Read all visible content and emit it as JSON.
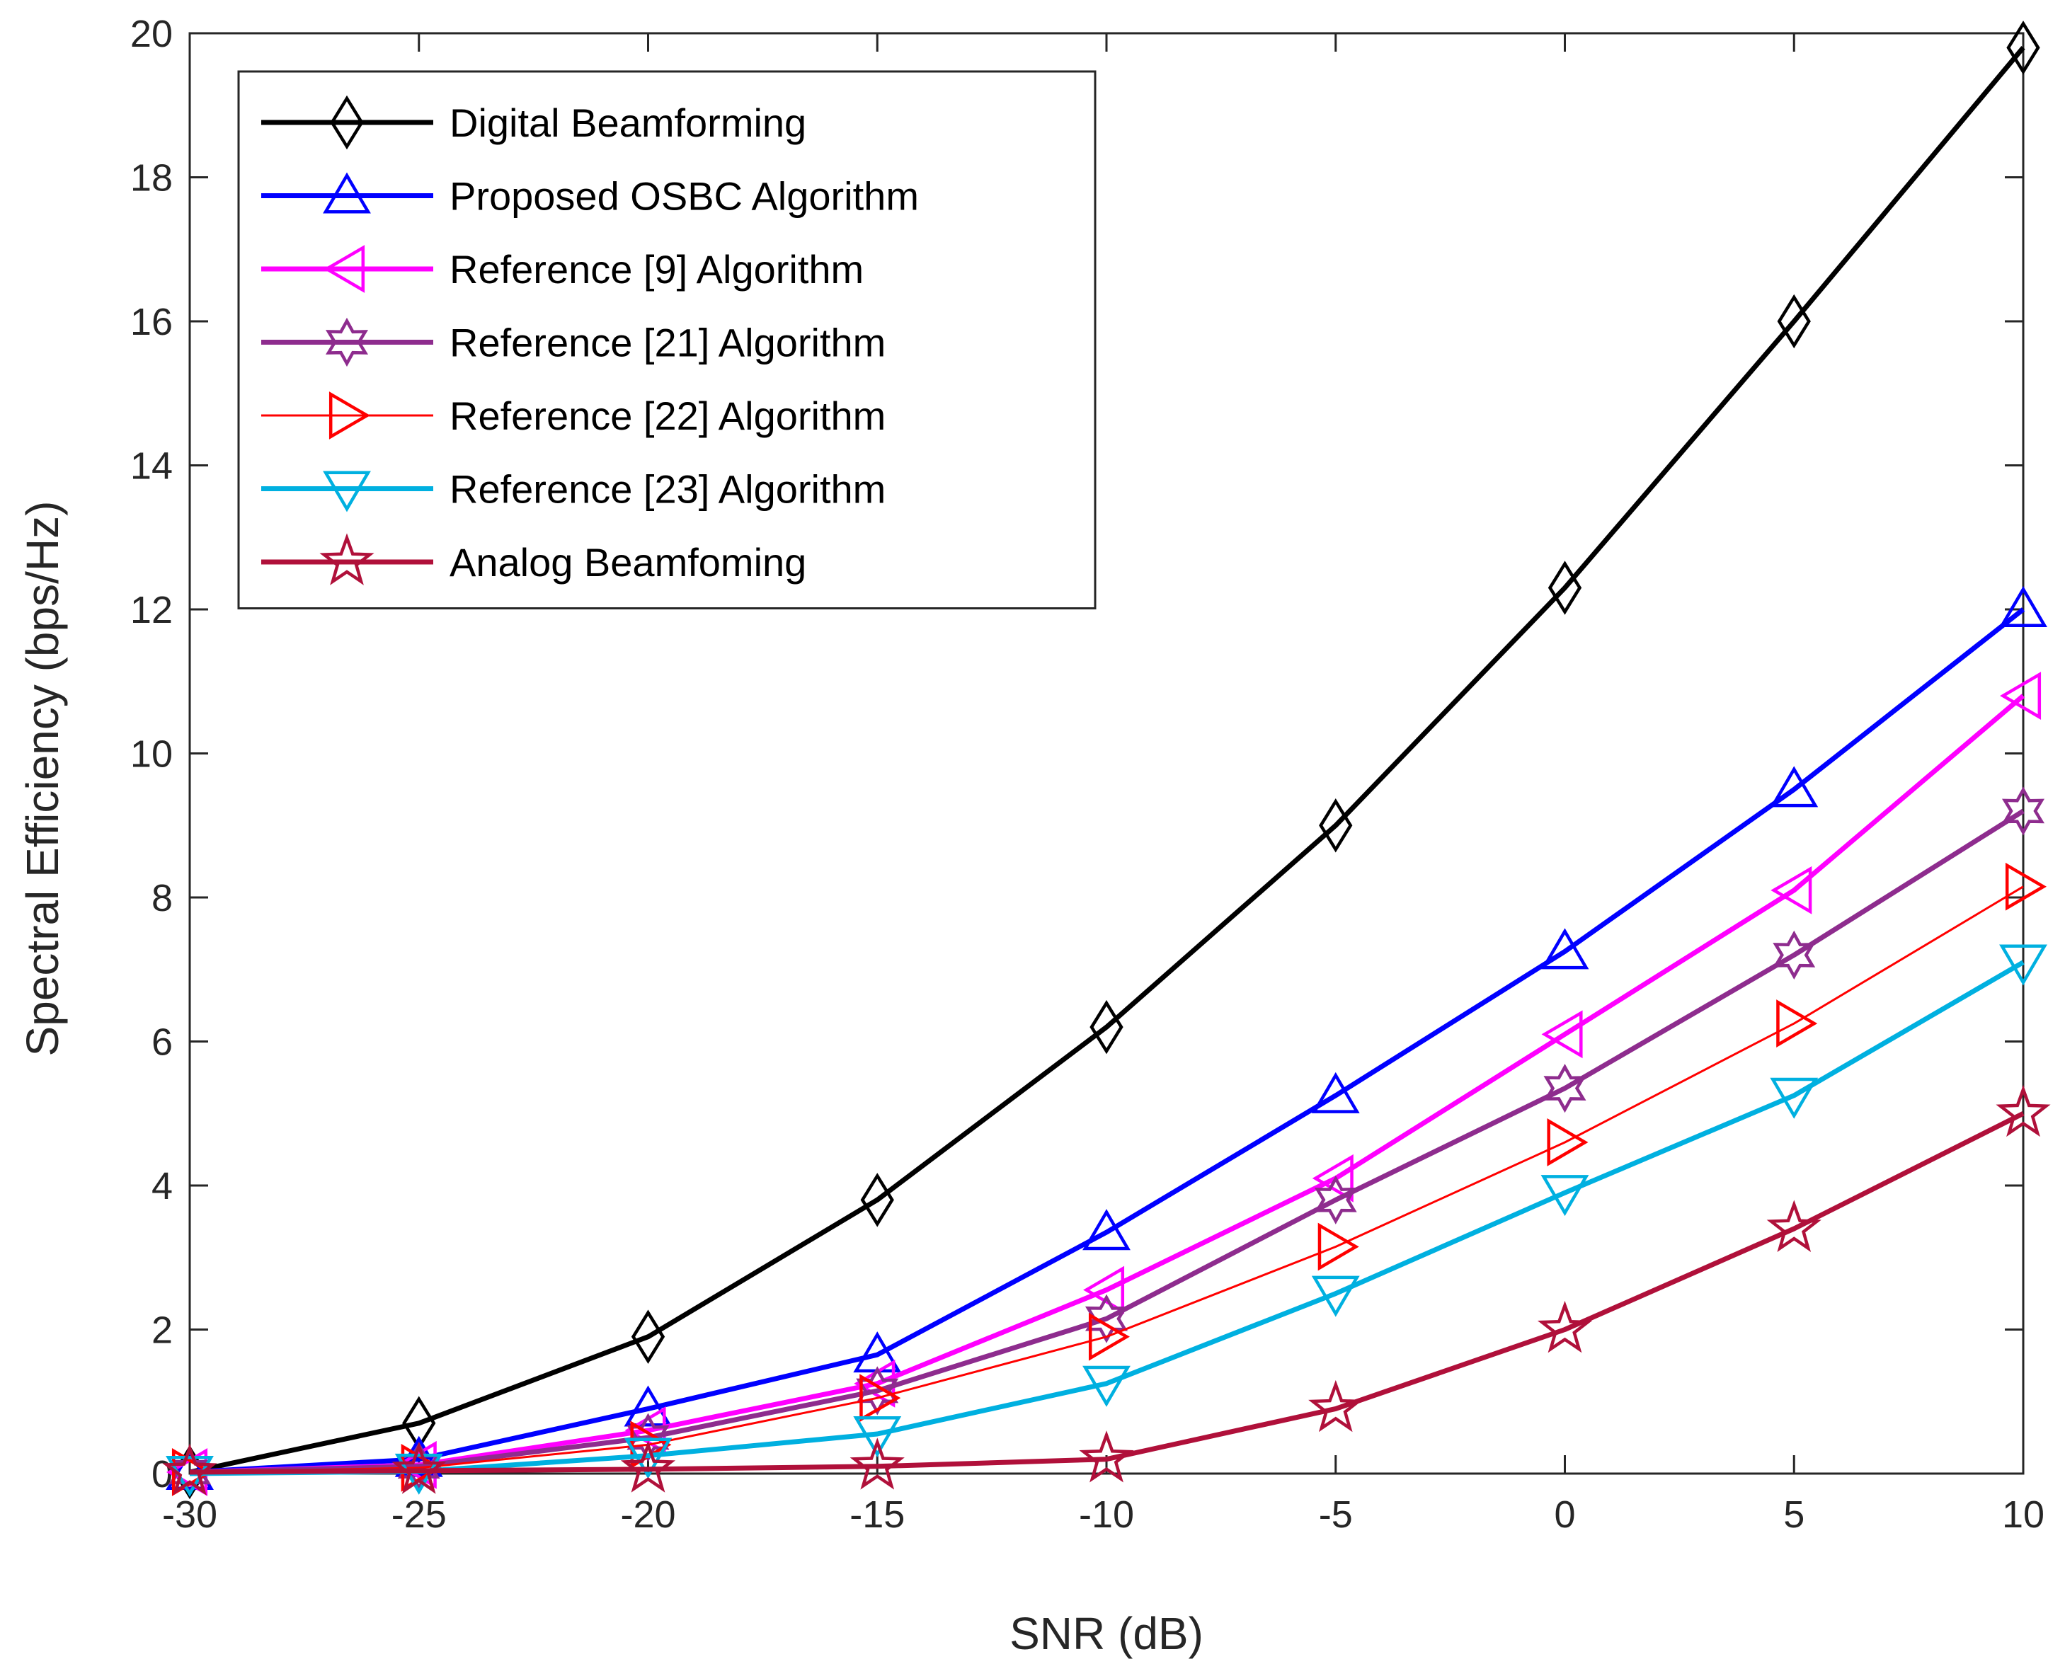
{
  "chart_data": {
    "type": "line",
    "title": "",
    "xlabel": "SNR (dB)",
    "ylabel": "Spectral Efficiency (bps/Hz)",
    "xlim": [
      -30,
      10
    ],
    "ylim": [
      0,
      20
    ],
    "x": [
      -30,
      -25,
      -20,
      -15,
      -10,
      -5,
      0,
      5,
      10
    ],
    "xticks": [
      -30,
      -25,
      -20,
      -15,
      -10,
      -5,
      0,
      5,
      10
    ],
    "yticks": [
      0,
      2,
      4,
      6,
      8,
      10,
      12,
      14,
      16,
      18,
      20
    ],
    "xtick_labels": [
      "-30",
      "-25",
      "-20",
      "-15",
      "-10",
      "-5",
      "0",
      "5",
      "10"
    ],
    "ytick_labels": [
      "0",
      "2",
      "4",
      "6",
      "8",
      "10",
      "12",
      "14",
      "16",
      "18",
      "20"
    ],
    "grid": false,
    "legend_position": "top-left",
    "series": [
      {
        "name": "Digital Beamforming",
        "color": "#000000",
        "marker": "diamond",
        "line_width": "thick",
        "values": [
          0.02,
          0.7,
          1.9,
          3.8,
          6.2,
          9.0,
          12.3,
          16.0,
          19.8
        ]
      },
      {
        "name": "Proposed OSBC Algorithm",
        "color": "#0000ff",
        "marker": "triangle-up",
        "line_width": "thick",
        "values": [
          0.02,
          0.2,
          0.9,
          1.65,
          3.35,
          5.25,
          7.25,
          9.5,
          12.0
        ]
      },
      {
        "name": "Reference [9] Algorithm",
        "color": "#ff00ff",
        "marker": "triangle-left",
        "line_width": "thick",
        "values": [
          0.02,
          0.12,
          0.6,
          1.25,
          2.55,
          4.1,
          6.1,
          8.1,
          10.8
        ]
      },
      {
        "name": "Reference [21] Algorithm",
        "color": "#8e2c8e",
        "marker": "hexagram",
        "line_width": "thick",
        "values": [
          0.02,
          0.1,
          0.5,
          1.15,
          2.15,
          3.8,
          5.35,
          7.2,
          9.2
        ]
      },
      {
        "name": "Reference [22] Algorithm",
        "color": "#ff0000",
        "marker": "triangle-right",
        "line_width": "thin",
        "values": [
          0.02,
          0.08,
          0.4,
          1.05,
          1.9,
          3.15,
          4.6,
          6.25,
          8.15
        ]
      },
      {
        "name": "Reference [23] Algorithm",
        "color": "#00b0e0",
        "marker": "triangle-down",
        "line_width": "thick",
        "values": [
          0.0,
          0.03,
          0.25,
          0.55,
          1.25,
          2.5,
          3.9,
          5.25,
          7.1
        ]
      },
      {
        "name": "Analog Beamfoming",
        "color": "#b0103a",
        "marker": "pentagram",
        "line_width": "thick",
        "values": [
          0.02,
          0.04,
          0.06,
          0.1,
          0.2,
          0.9,
          2.0,
          3.4,
          5.0
        ]
      }
    ]
  }
}
